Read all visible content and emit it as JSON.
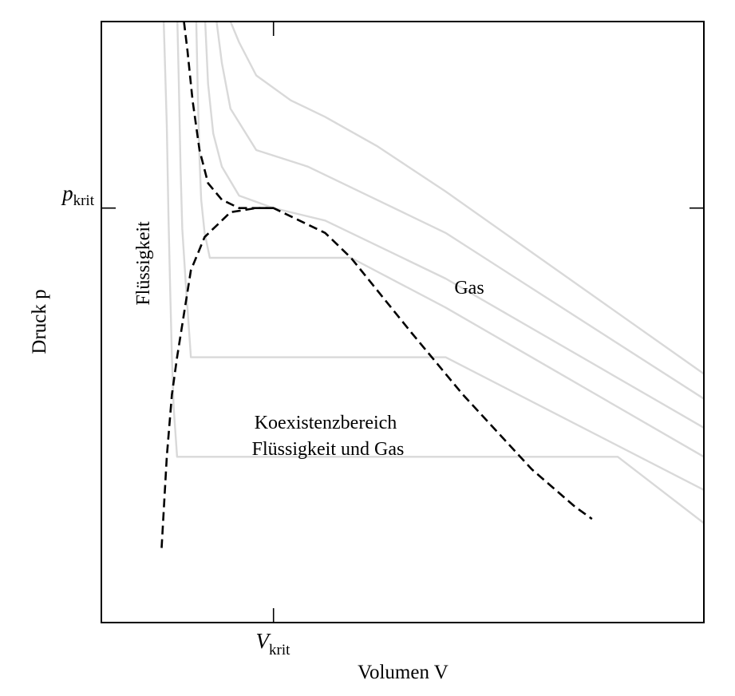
{
  "chart_data": {
    "type": "line",
    "xlabel": "Volumen V",
    "ylabel": "Druck p",
    "x_ticks": [
      {
        "symbol": "V",
        "subscript": "krit",
        "value": 1.0
      }
    ],
    "y_ticks": [
      {
        "symbol": "p",
        "subscript": "krit",
        "value": 1.0
      }
    ],
    "xlim": [
      0,
      3.5
    ],
    "ylim": [
      0,
      1.45
    ],
    "grid": false,
    "legend": "none",
    "annotations": [
      "Flüssigkeit",
      "Gas",
      "Koexistenzbereich",
      "Flüssigkeit und Gas"
    ],
    "colors": {
      "isotherm": "#d9d9d9",
      "boundary": "#000000",
      "axes": "#000000"
    },
    "series": [
      {
        "style": "isotherm",
        "points": [
          [
            0.36,
            1.48
          ],
          [
            0.38,
            1.2
          ],
          [
            0.39,
            0.98
          ],
          [
            0.4,
            0.8
          ],
          [
            0.41,
            0.64
          ],
          [
            0.42,
            0.52
          ],
          [
            0.44,
            0.4
          ],
          [
            3.0,
            0.4
          ],
          [
            3.5,
            0.24
          ]
        ]
      },
      {
        "style": "isotherm",
        "points": [
          [
            0.44,
            1.48
          ],
          [
            0.45,
            1.3
          ],
          [
            0.46,
            1.1
          ],
          [
            0.47,
            0.95
          ],
          [
            0.49,
            0.82
          ],
          [
            0.5,
            0.76
          ],
          [
            0.52,
            0.64
          ],
          [
            2.0,
            0.64
          ],
          [
            3.5,
            0.32
          ]
        ]
      },
      {
        "style": "isotherm",
        "points": [
          [
            0.55,
            1.48
          ],
          [
            0.56,
            1.28
          ],
          [
            0.57,
            1.12
          ],
          [
            0.58,
            1.02
          ],
          [
            0.6,
            0.94
          ],
          [
            0.63,
            0.88
          ],
          [
            1.45,
            0.88
          ],
          [
            2.0,
            0.76
          ],
          [
            3.5,
            0.4
          ]
        ]
      },
      {
        "style": "isotherm",
        "points": [
          [
            0.6,
            1.48
          ],
          [
            0.62,
            1.3
          ],
          [
            0.65,
            1.18
          ],
          [
            0.7,
            1.1
          ],
          [
            0.8,
            1.03
          ],
          [
            1.0,
            1.0
          ],
          [
            1.3,
            0.97
          ],
          [
            2.0,
            0.83
          ],
          [
            3.5,
            0.47
          ]
        ]
      },
      {
        "style": "isotherm",
        "points": [
          [
            0.66,
            1.48
          ],
          [
            0.7,
            1.35
          ],
          [
            0.75,
            1.24
          ],
          [
            0.9,
            1.14
          ],
          [
            1.2,
            1.1
          ],
          [
            1.5,
            1.04
          ],
          [
            2.0,
            0.94
          ],
          [
            3.5,
            0.54
          ]
        ]
      },
      {
        "style": "isotherm",
        "points": [
          [
            0.72,
            1.48
          ],
          [
            0.8,
            1.4
          ],
          [
            0.9,
            1.32
          ],
          [
            1.1,
            1.26
          ],
          [
            1.3,
            1.22
          ],
          [
            1.6,
            1.15
          ],
          [
            2.0,
            1.04
          ],
          [
            3.5,
            0.6
          ]
        ]
      },
      {
        "style": "boundary",
        "points": [
          [
            0.35,
            0.18
          ],
          [
            0.38,
            0.4
          ],
          [
            0.41,
            0.55
          ],
          [
            0.44,
            0.64
          ],
          [
            0.52,
            0.85
          ],
          [
            0.6,
            0.93
          ],
          [
            0.75,
            0.99
          ],
          [
            0.9,
            1.0
          ],
          [
            1.0,
            1.0
          ],
          [
            1.3,
            0.94
          ],
          [
            1.45,
            0.88
          ],
          [
            1.8,
            0.7
          ],
          [
            2.1,
            0.55
          ],
          [
            2.5,
            0.37
          ],
          [
            2.75,
            0.28
          ],
          [
            2.85,
            0.25
          ]
        ]
      },
      {
        "style": "boundary",
        "points": [
          [
            0.48,
            1.45
          ],
          [
            0.5,
            1.38
          ],
          [
            0.53,
            1.26
          ],
          [
            0.57,
            1.14
          ],
          [
            0.62,
            1.06
          ],
          [
            0.7,
            1.02
          ],
          [
            0.8,
            1.0
          ],
          [
            1.0,
            1.0
          ]
        ]
      }
    ]
  }
}
